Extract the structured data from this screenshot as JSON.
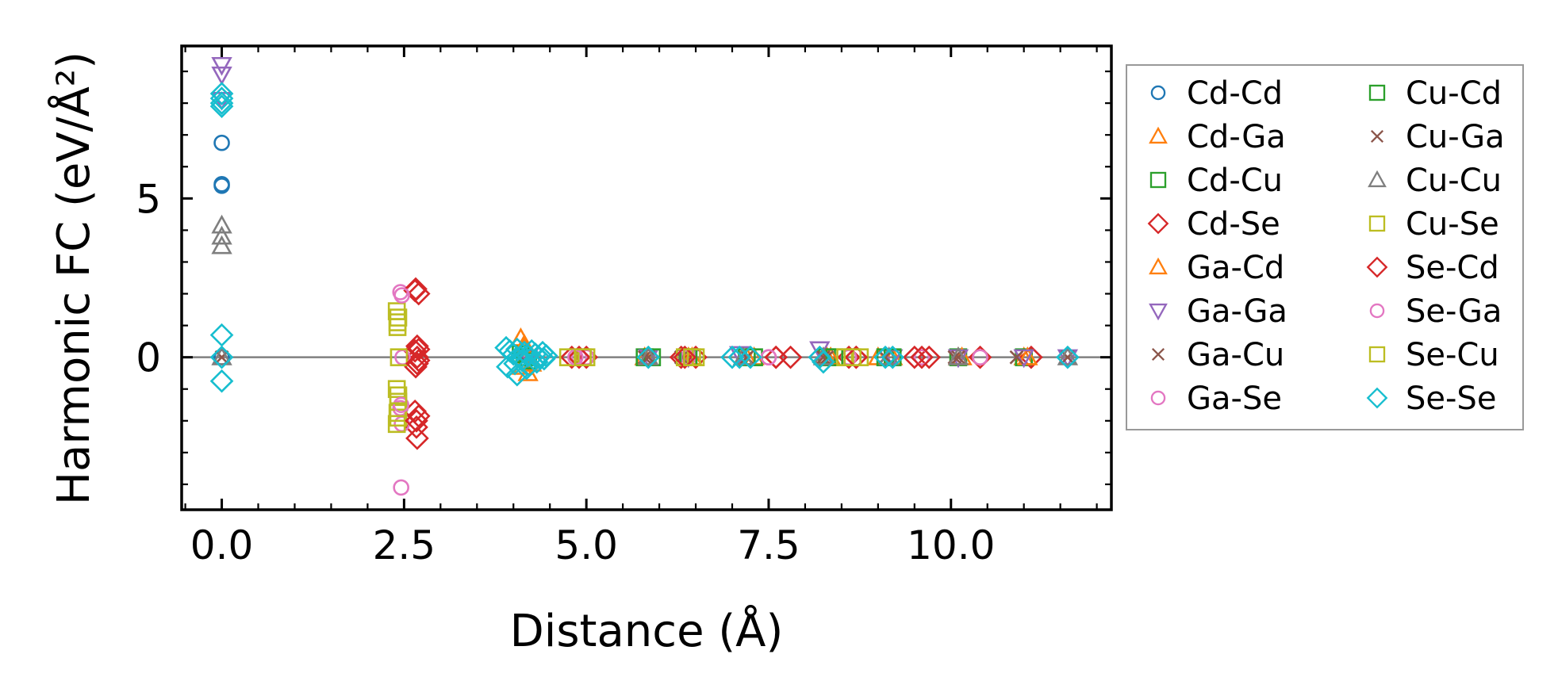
{
  "chart_data": {
    "type": "scatter",
    "title": "",
    "xlabel": "Distance (Å)",
    "ylabel": "Harmonic FC (eV/Å²)",
    "xlim": [
      -0.55,
      12.2
    ],
    "ylim": [
      -4.8,
      9.8
    ],
    "xticks": [
      0.0,
      2.5,
      5.0,
      7.5,
      10.0
    ],
    "xtick_labels": [
      "0.0",
      "2.5",
      "5.0",
      "7.5",
      "10.0"
    ],
    "yticks": [
      0,
      5
    ],
    "ytick_labels": [
      "0",
      "5"
    ],
    "reference_line": 0,
    "legend_position": "outside right",
    "legend_columns": 2,
    "series": [
      {
        "name": "Cd-Cd",
        "marker": "circle",
        "color": "#1f77b4",
        "x": [
          0,
          0,
          0,
          0,
          0
        ],
        "y": [
          6.75,
          5.45,
          5.4,
          0,
          0
        ]
      },
      {
        "name": "Cd-Ga",
        "marker": "triangle-up",
        "color": "#ff7f0e",
        "x": [
          4.1,
          4.15,
          4.12,
          4.2,
          5.8,
          6.4,
          7.2,
          8.3,
          9.0,
          10.1,
          11.0
        ],
        "y": [
          0.6,
          0.3,
          -0.3,
          -0.5,
          0,
          0,
          0,
          0,
          0,
          0,
          0
        ]
      },
      {
        "name": "Cd-Cu",
        "marker": "square",
        "color": "#2ca02c",
        "x": [
          4.1,
          4.2,
          5.8,
          6.4,
          7.2,
          8.3,
          9.1,
          10.1,
          11.0
        ],
        "y": [
          0.1,
          -0.1,
          0,
          0,
          0,
          0,
          0,
          0,
          0
        ]
      },
      {
        "name": "Cd-Se",
        "marker": "diamond",
        "color": "#d62728",
        "x": [
          2.65,
          2.7,
          2.68,
          2.65,
          2.68,
          2.7,
          2.66,
          2.65,
          2.7,
          2.67,
          2.68,
          4.8,
          5.0,
          6.3,
          6.5,
          7.6,
          7.8,
          8.6,
          8.7,
          9.5,
          9.7,
          10.4,
          11.1
        ],
        "y": [
          2.1,
          2.0,
          0.35,
          0.2,
          0.0,
          -0.1,
          -0.3,
          -1.7,
          -1.85,
          -2.2,
          -2.55,
          0,
          0,
          0,
          0,
          0,
          0,
          0,
          0,
          0,
          0,
          0,
          0
        ]
      },
      {
        "name": "Ga-Cd",
        "marker": "triangle-up",
        "color": "#ff7f0e",
        "x": [
          4.15,
          4.25,
          5.85,
          6.45,
          7.3,
          8.35,
          9.2,
          10.15,
          11.05
        ],
        "y": [
          0.4,
          -0.2,
          0,
          0,
          0,
          0,
          0,
          0,
          0
        ]
      },
      {
        "name": "Ga-Ga",
        "marker": "triangle-down",
        "color": "#9467bd",
        "x": [
          0,
          0,
          0,
          4.2,
          5.85,
          6.4,
          7.1,
          8.2,
          9.2,
          10.1,
          11.0,
          11.6
        ],
        "y": [
          9.2,
          8.9,
          8.1,
          0,
          0,
          0,
          0.1,
          0.25,
          0,
          0,
          0,
          0
        ]
      },
      {
        "name": "Ga-Cu",
        "marker": "x",
        "color": "#8c564b",
        "x": [
          0,
          4.1,
          5.8,
          6.3,
          7.2,
          8.3,
          9.1,
          10.1,
          10.9,
          11.6
        ],
        "y": [
          0,
          0,
          0,
          0,
          0,
          0,
          0,
          0,
          0,
          0
        ]
      },
      {
        "name": "Ga-Se",
        "marker": "circle",
        "color": "#e377c2",
        "x": [
          2.45,
          2.48,
          2.45,
          2.47,
          2.46,
          4.9,
          5.0,
          6.4,
          7.5,
          8.6,
          9.6,
          10.4
        ],
        "y": [
          2.05,
          0.0,
          -1.6,
          -2.1,
          -4.1,
          0,
          0,
          0,
          0,
          0,
          0,
          0
        ]
      },
      {
        "name": "Cu-Cd",
        "marker": "square",
        "color": "#2ca02c",
        "x": [
          4.15,
          5.9,
          6.4,
          7.3,
          8.4,
          9.2
        ],
        "y": [
          0,
          0,
          0,
          0,
          0,
          0
        ]
      },
      {
        "name": "Cu-Ga",
        "marker": "x",
        "color": "#8c564b",
        "x": [
          5.85,
          7.2,
          8.25,
          10.05
        ],
        "y": [
          0,
          0,
          0,
          0
        ]
      },
      {
        "name": "Cu-Cu",
        "marker": "triangle-up",
        "color": "#7f7f7f",
        "x": [
          0,
          0,
          0,
          0,
          5.85,
          7.15,
          8.25,
          9.15,
          10.1,
          11.6
        ],
        "y": [
          4.15,
          3.8,
          3.5,
          0,
          0,
          0,
          0,
          0,
          0,
          0
        ]
      },
      {
        "name": "Cu-Se",
        "marker": "square",
        "color": "#bcbd22",
        "x": [
          2.4,
          2.42,
          2.41,
          2.43,
          2.4,
          2.42,
          2.41,
          2.42,
          2.4,
          4.75,
          5.0,
          6.35,
          6.5,
          8.55,
          8.75
        ],
        "y": [
          1.45,
          1.25,
          0.95,
          0.0,
          -1.0,
          -1.4,
          -1.75,
          -1.9,
          -2.1,
          0,
          0,
          0,
          0,
          0,
          0
        ]
      },
      {
        "name": "Se-Cd",
        "marker": "diamond",
        "color": "#d62728",
        "x": [
          2.66,
          2.7,
          2.68,
          2.67,
          4.9,
          6.35,
          7.6,
          8.7,
          9.6
        ],
        "y": [
          2.15,
          0.25,
          -0.2,
          -2.0,
          0,
          0,
          0,
          0,
          0
        ]
      },
      {
        "name": "Se-Ga",
        "marker": "circle",
        "color": "#e377c2",
        "x": [
          2.47,
          2.46,
          4.85,
          7.5
        ],
        "y": [
          1.95,
          -1.5,
          0,
          0
        ]
      },
      {
        "name": "Se-Cu",
        "marker": "square",
        "color": "#bcbd22",
        "x": [
          2.41,
          2.42,
          4.95,
          6.45,
          8.65
        ],
        "y": [
          1.1,
          -1.2,
          0,
          0,
          0
        ]
      },
      {
        "name": "Se-Se",
        "marker": "diamond",
        "color": "#17becf",
        "x": [
          0,
          0,
          0,
          0,
          0,
          0,
          0,
          3.9,
          3.95,
          4.0,
          4.05,
          4.1,
          4.15,
          4.2,
          4.25,
          4.3,
          4.35,
          4.4,
          4.45,
          3.92,
          4.02,
          4.12,
          4.22,
          4.32,
          4.42,
          4.05,
          4.18,
          5.85,
          7.0,
          7.1,
          7.25,
          8.2,
          8.25,
          9.1,
          9.2,
          11.6
        ],
        "y": [
          8.3,
          8.15,
          8.0,
          7.9,
          0.7,
          0,
          -0.75,
          0.3,
          0.2,
          0.1,
          0.25,
          0.0,
          0.15,
          0.05,
          0.2,
          0.1,
          0.0,
          0.15,
          0.05,
          -0.3,
          -0.2,
          -0.1,
          -0.25,
          -0.15,
          -0.05,
          -0.55,
          -0.35,
          0,
          0,
          0,
          0,
          0,
          -0.15,
          0,
          0,
          0
        ]
      }
    ]
  }
}
